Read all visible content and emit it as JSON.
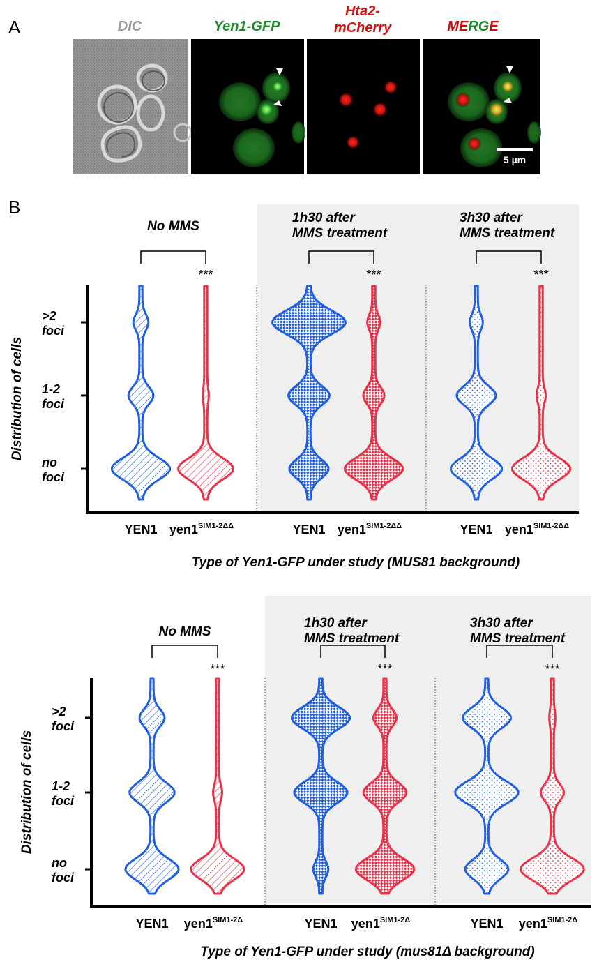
{
  "panel_a": {
    "label": "A",
    "titles": {
      "dic": "DIC",
      "yen1_gfp": "Yen1-GFP",
      "hta2_line1": "Hta2-",
      "hta2_line2": "mCherry",
      "merge_m": "M",
      "merge_e": "E",
      "merge_r": "R",
      "merge_g": "G",
      "merge_e2": "E"
    },
    "scale_bar": "5 µm",
    "colors": {
      "gfp": "#1a8a2a",
      "mcherry": "#cc1111",
      "dic": "#9a9a9a"
    }
  },
  "panel_b": {
    "label": "B",
    "ylabel": "Distribution of cells",
    "ticks": [
      {
        "line1": ">2",
        "line2": "foci"
      },
      {
        "line1": "1-2",
        "line2": "foci"
      },
      {
        "line1": "no",
        "line2": "foci"
      }
    ],
    "colors": {
      "wt": "#1f5fe0",
      "mut": "#e8324a",
      "shade": "#efefef"
    },
    "significance": "***",
    "plots": [
      {
        "xlabel": "Type of Yen1-GFP under study (MUS81 background)",
        "groups": [
          {
            "title_line1": "No MMS",
            "title_line2": "",
            "x_wt": "YEN1",
            "x_mut": "yen1",
            "x_mut_sup": "SIM1-2ΔΔ"
          },
          {
            "title_line1": "1h30 after",
            "title_line2": "MMS treatment",
            "x_wt": "YEN1",
            "x_mut": "yen1",
            "x_mut_sup": "SIM1-2ΔΔ"
          },
          {
            "title_line1": "3h30 after",
            "title_line2": "MMS treatment",
            "x_wt": "YEN1",
            "x_mut": "yen1",
            "x_mut_sup": "SIM1-2ΔΔ"
          }
        ]
      },
      {
        "xlabel": "Type of Yen1-GFP under study (mus81Δ background)",
        "groups": [
          {
            "title_line1": "No MMS",
            "title_line2": "",
            "x_wt": "YEN1",
            "x_mut": "yen1",
            "x_mut_sup": "SIM1-2Δ"
          },
          {
            "title_line1": "1h30 after",
            "title_line2": "MMS treatment",
            "x_wt": "YEN1",
            "x_mut": "yen1",
            "x_mut_sup": "SIM1-2Δ"
          },
          {
            "title_line1": "3h30 after",
            "title_line2": "MMS treatment",
            "x_wt": "YEN1",
            "x_mut": "yen1",
            "x_mut_sup": "SIM1-2Δ"
          }
        ]
      }
    ]
  },
  "chart_data": [
    {
      "type": "violin",
      "ylabel": "Distribution of cells",
      "categories": [
        ">2 foci",
        "1-2 foci",
        "no foci"
      ],
      "xlabel": "Type of Yen1-GFP under study (MUS81 background)",
      "series": [
        {
          "condition": "No MMS",
          "strain": "YEN1",
          "widths": {
            ">2 foci": 0.12,
            "1-2 foci": 0.22,
            "no foci": 0.55
          },
          "pattern": "hatch"
        },
        {
          "condition": "No MMS",
          "strain": "yen1SIM1-2ΔΔ",
          "widths": {
            ">2 foci": 0.0,
            "1-2 foci": 0.03,
            "no foci": 0.52
          },
          "pattern": "hatch"
        },
        {
          "condition": "1h30 after MMS treatment",
          "strain": "YEN1",
          "widths": {
            ">2 foci": 0.7,
            "1-2 foci": 0.38,
            "no foci": 0.36
          },
          "pattern": "checker"
        },
        {
          "condition": "1h30 after MMS treatment",
          "strain": "yen1SIM1-2ΔΔ",
          "widths": {
            ">2 foci": 0.1,
            "1-2 foci": 0.18,
            "no foci": 0.55
          },
          "pattern": "checker"
        },
        {
          "condition": "3h30 after MMS treatment",
          "strain": "YEN1",
          "widths": {
            ">2 foci": 0.1,
            "1-2 foci": 0.36,
            "no foci": 0.48
          },
          "pattern": "dots"
        },
        {
          "condition": "3h30 after MMS treatment",
          "strain": "yen1SIM1-2ΔΔ",
          "widths": {
            ">2 foci": 0.0,
            "1-2 foci": 0.06,
            "no foci": 0.55
          },
          "pattern": "dots"
        }
      ],
      "significance": [
        "***",
        "***",
        "***"
      ]
    },
    {
      "type": "violin",
      "ylabel": "Distribution of cells",
      "categories": [
        ">2 foci",
        "1-2 foci",
        "no foci"
      ],
      "xlabel": "Type of Yen1-GFP under study (mus81Δ background)",
      "series": [
        {
          "condition": "No MMS",
          "strain": "YEN1",
          "widths": {
            ">2 foci": 0.22,
            "1-2 foci": 0.42,
            "no foci": 0.5
          },
          "pattern": "hatch"
        },
        {
          "condition": "No MMS",
          "strain": "yen1SIM1-2Δ",
          "widths": {
            ">2 foci": 0.0,
            "1-2 foci": 0.06,
            "no foci": 0.5
          },
          "pattern": "hatch"
        },
        {
          "condition": "1h30 after MMS treatment",
          "strain": "YEN1",
          "widths": {
            ">2 foci": 0.55,
            "1-2 foci": 0.5,
            "no foci": 0.12
          },
          "pattern": "checker"
        },
        {
          "condition": "1h30 after MMS treatment",
          "strain": "yen1SIM1-2Δ",
          "widths": {
            ">2 foci": 0.2,
            "1-2 foci": 0.4,
            "no foci": 0.55
          },
          "pattern": "checker"
        },
        {
          "condition": "3h30 after MMS treatment",
          "strain": "YEN1",
          "widths": {
            ">2 foci": 0.45,
            "1-2 foci": 0.6,
            "no foci": 0.4
          },
          "pattern": "dots"
        },
        {
          "condition": "3h30 after MMS treatment",
          "strain": "yen1SIM1-2Δ",
          "widths": {
            ">2 foci": 0.03,
            "1-2 foci": 0.2,
            "no foci": 0.6
          },
          "pattern": "dots"
        }
      ],
      "significance": [
        "***",
        "***",
        "***"
      ]
    }
  ]
}
